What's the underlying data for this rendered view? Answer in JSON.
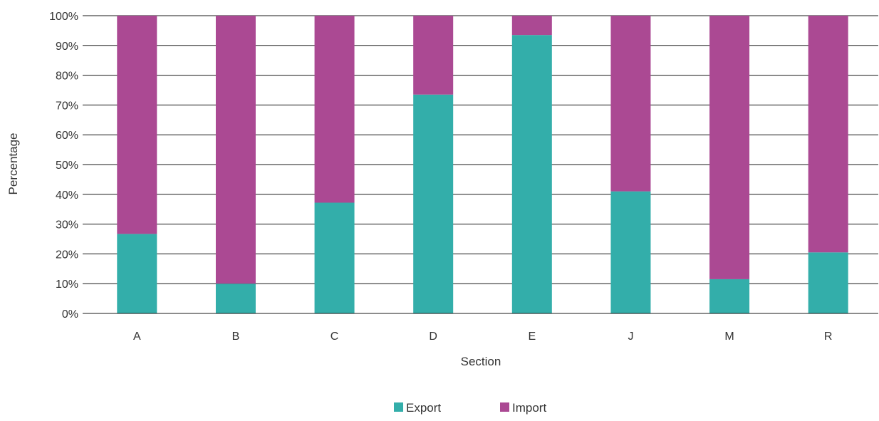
{
  "chart_data": {
    "type": "bar",
    "stacked": true,
    "percent": true,
    "categories": [
      "A",
      "B",
      "C",
      "D",
      "E",
      "J",
      "M",
      "R"
    ],
    "series": [
      {
        "name": "Export",
        "values": [
          26.7,
          10.0,
          37.2,
          73.5,
          93.5,
          41.0,
          11.5,
          20.5
        ]
      },
      {
        "name": "Import",
        "values": [
          73.3,
          90.0,
          62.8,
          26.5,
          6.5,
          59.0,
          88.5,
          79.5
        ]
      }
    ],
    "xlabel": "Section",
    "ylabel": "Percentage",
    "ylim": [
      0,
      100
    ],
    "yticks": [
      "0%",
      "10%",
      "20%",
      "30%",
      "40%",
      "50%",
      "60%",
      "70%",
      "80%",
      "90%",
      "100%"
    ],
    "grid": true,
    "legend_position": "bottom",
    "colors": {
      "Export": "#33aeaa",
      "Import": "#ab4993"
    }
  }
}
